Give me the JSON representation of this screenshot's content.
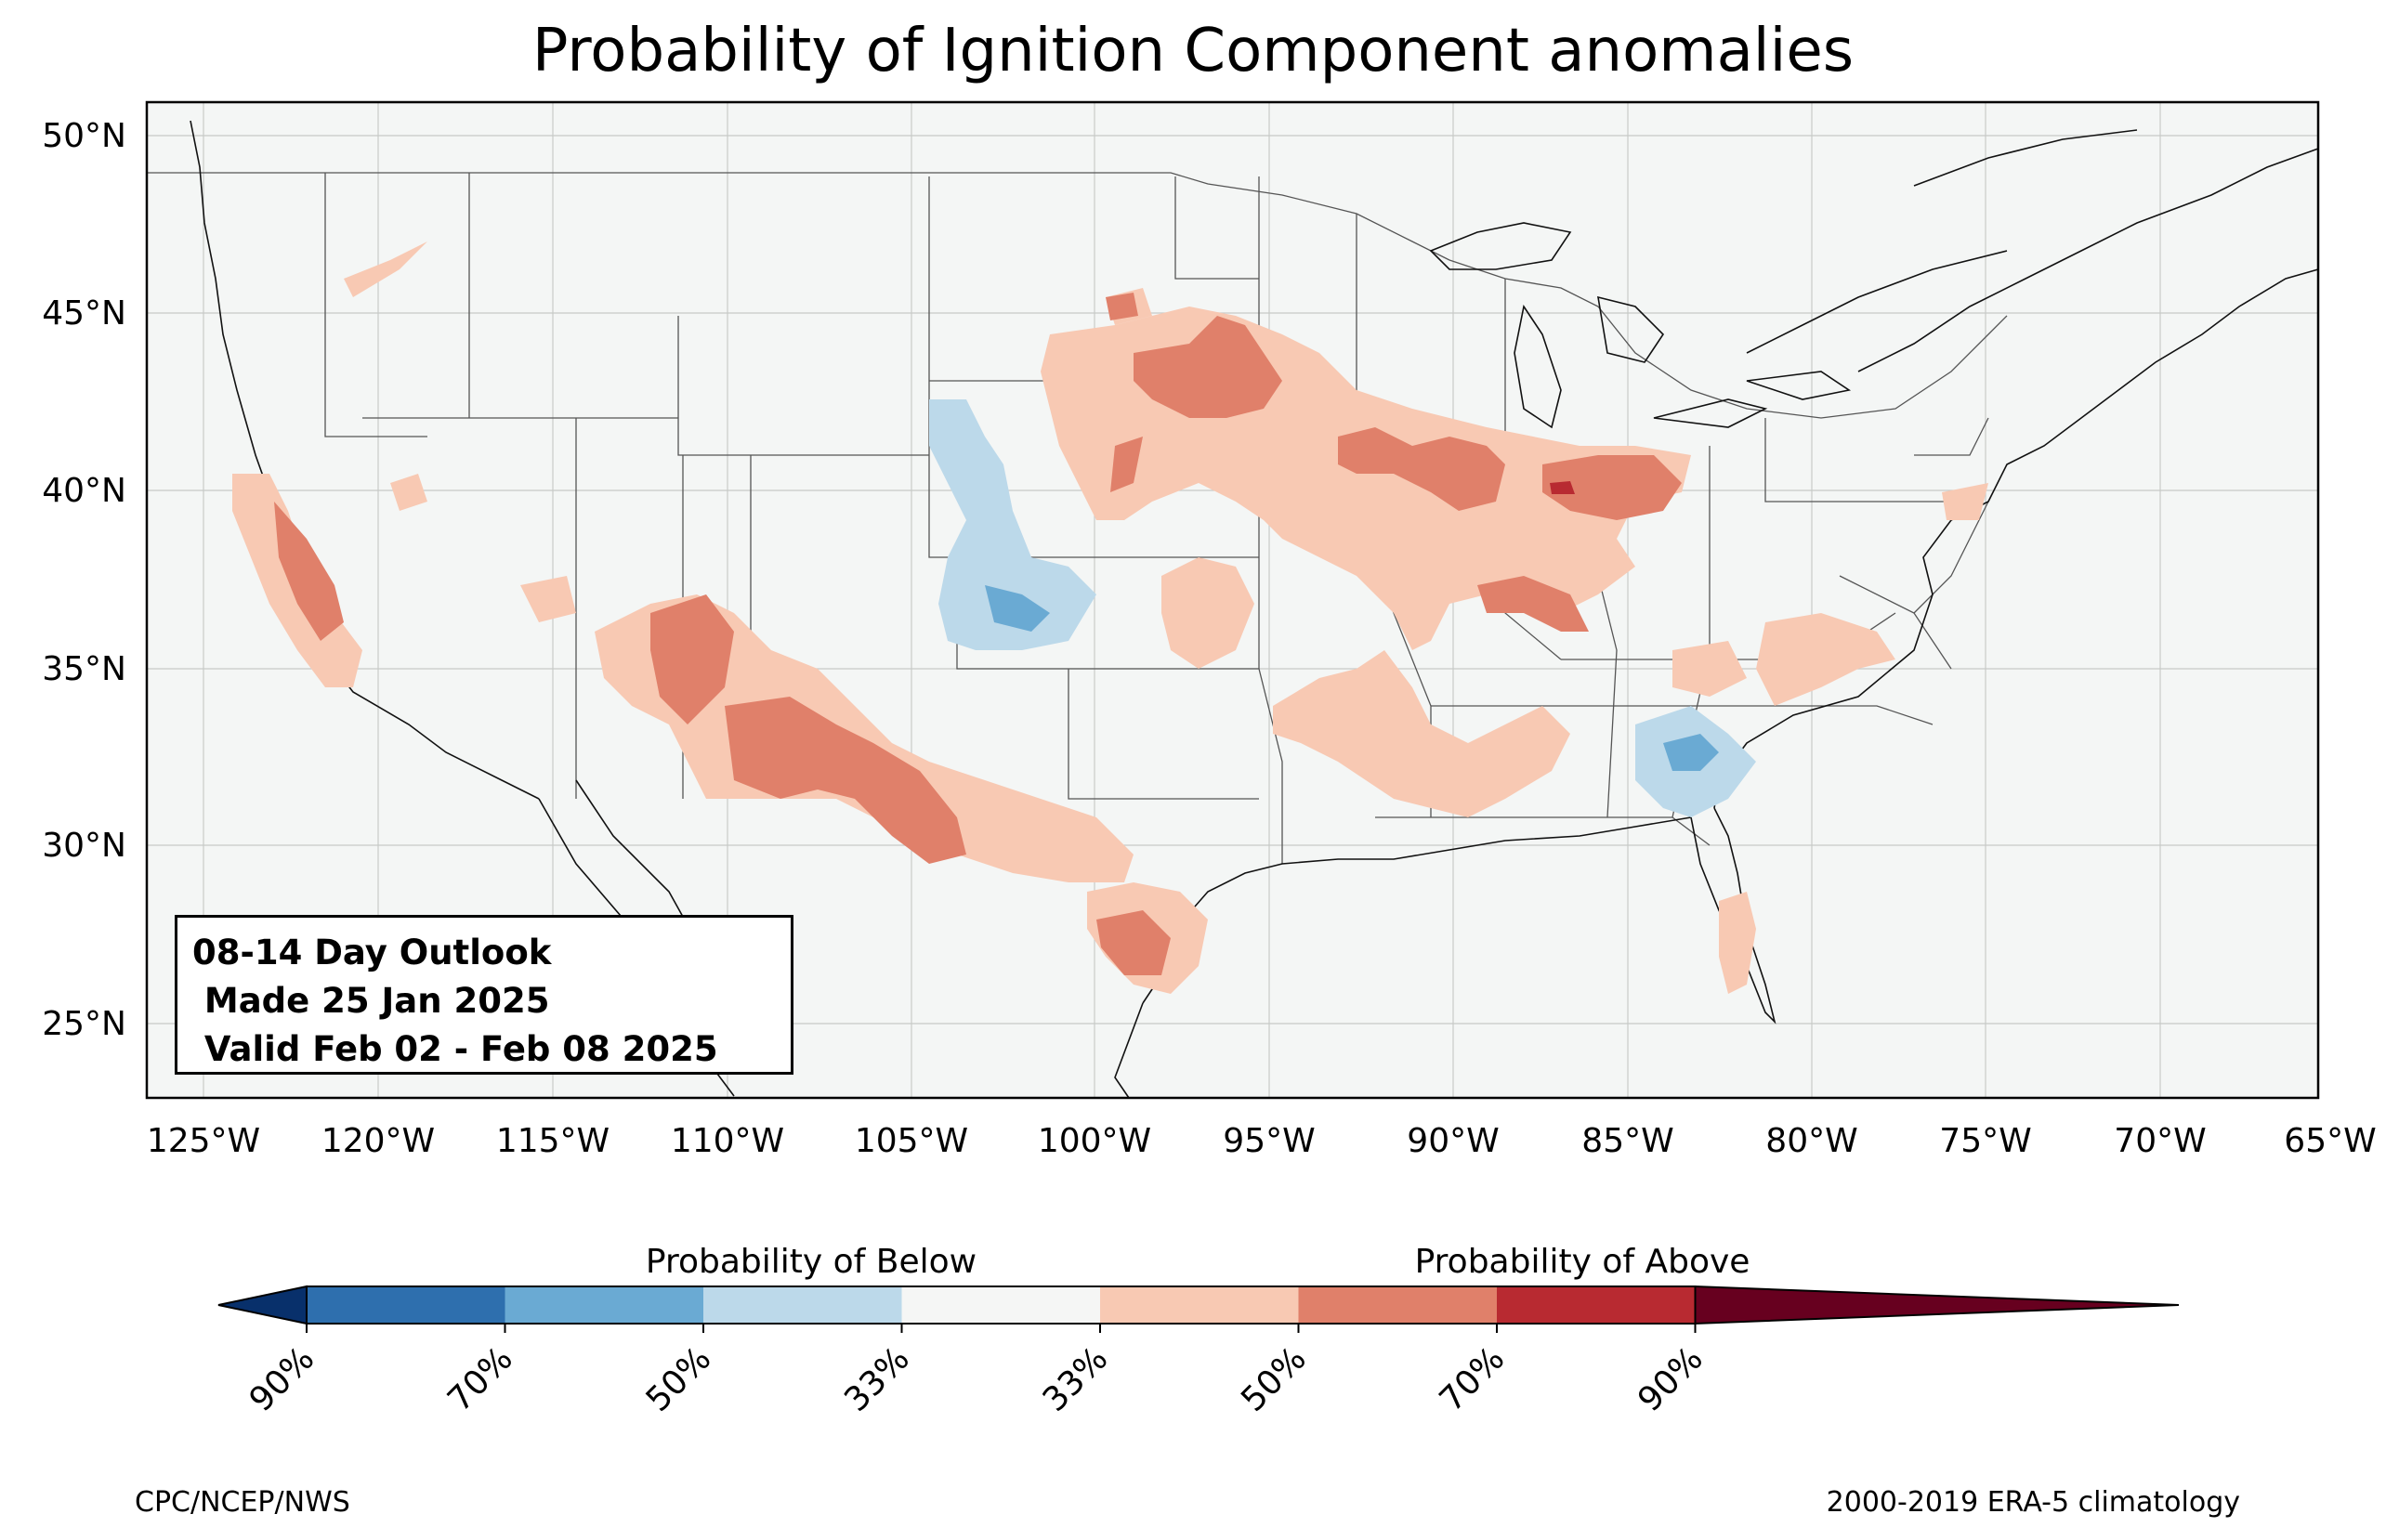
{
  "title": "Probability of Ignition Component anomalies",
  "lat_labels": [
    "50°N",
    "45°N",
    "40°N",
    "35°N",
    "30°N",
    "25°N"
  ],
  "lon_labels": [
    "125°W",
    "120°W",
    "115°W",
    "110°W",
    "105°W",
    "100°W",
    "95°W",
    "90°W",
    "85°W",
    "80°W",
    "75°W",
    "70°W",
    "65°W"
  ],
  "info": {
    "line1": "08-14 Day Outlook",
    "line2": " Made 25 Jan 2025",
    "line3": " Valid Feb 02 - Feb 08 2025"
  },
  "colorbar": {
    "below_label": "Probability of Below",
    "above_label": "Probability of Above",
    "tick_labels": [
      "90%",
      "70%",
      "50%",
      "33%",
      "33%",
      "50%",
      "70%",
      "90%"
    ],
    "colors": [
      "#08306b",
      "#2e6fae",
      "#6aaad3",
      "#bcd9ea",
      "#f5f6f5",
      "#f8c9b3",
      "#e0806a",
      "#b82a31",
      "#67001f"
    ]
  },
  "credits": {
    "left": "CPC/NCEP/NWS",
    "right": "2000-2019 ERA-5 climatology"
  },
  "colors": {
    "background": "#f4f6f5",
    "above_33": "#f8c9b3",
    "above_50": "#e0806a",
    "above_70": "#b82a31",
    "below_33": "#bcd9ea",
    "below_50": "#6aaad3",
    "below_70": "#2e6fae"
  }
}
